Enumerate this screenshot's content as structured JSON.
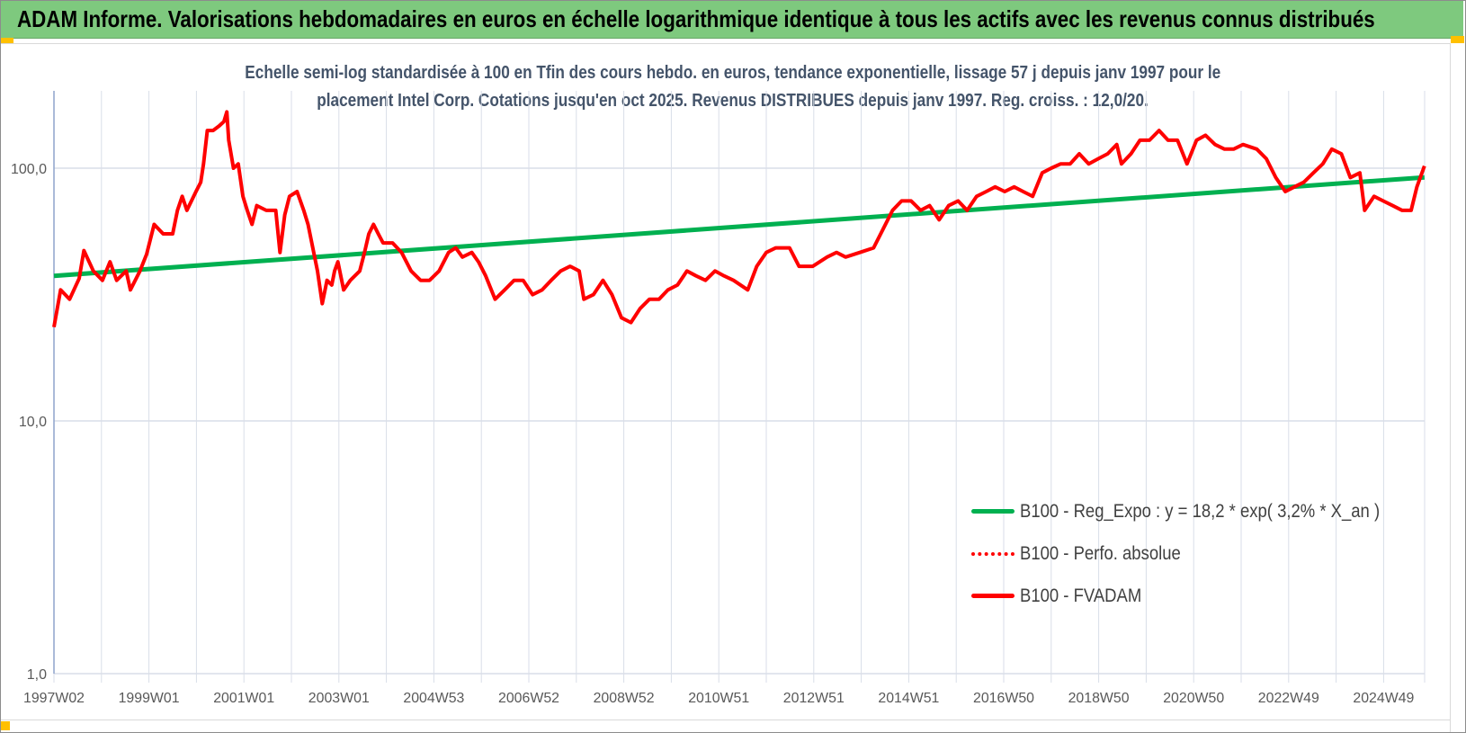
{
  "header": {
    "title": "ADAM Informe. Valorisations hebdomadaires en euros en échelle logarithmique identique à tous les actifs avec les revenus connus distribués"
  },
  "chart_data": {
    "type": "line",
    "subtitle_lines": [
      "Echelle semi-log standardisée à 100 en Tfin des cours hebdo. en euros, tendance exponentielle, lissage 57 j depuis janv 1997 pour le",
      "placement Intel Corp. Cotations jusqu'en oct 2025. Revenus DISTRIBUES depuis janv 1997. Reg. croiss. : 12,0/20."
    ],
    "y_scale": "log",
    "ylim": [
      1,
      200
    ],
    "y_ticks": [
      {
        "value": 1,
        "label": "1,0"
      },
      {
        "value": 10,
        "label": "10,0"
      },
      {
        "value": 100,
        "label": "100,0"
      }
    ],
    "xlim": [
      1997.0,
      2025.86
    ],
    "x_ticks": [
      {
        "year": 1997,
        "label": "1997W02"
      },
      {
        "year": 1999,
        "label": "1999W01"
      },
      {
        "year": 2001,
        "label": "2001W01"
      },
      {
        "year": 2003,
        "label": "2003W01"
      },
      {
        "year": 2005,
        "label": "2004W53"
      },
      {
        "year": 2007,
        "label": "2006W52"
      },
      {
        "year": 2009,
        "label": "2008W52"
      },
      {
        "year": 2011,
        "label": "2010W51"
      },
      {
        "year": 2013,
        "label": "2012W51"
      },
      {
        "year": 2015,
        "label": "2014W51"
      },
      {
        "year": 2017,
        "label": "2016W50"
      },
      {
        "year": 2019,
        "label": "2018W50"
      },
      {
        "year": 2021,
        "label": "2020W50"
      },
      {
        "year": 2023,
        "label": "2022W49"
      },
      {
        "year": 2025,
        "label": "2024W49"
      }
    ],
    "grid": true,
    "legend_position": "bottom-right",
    "series": [
      {
        "name": "B100 - Reg_Expo : y = 18,2 * exp( 3,2% *  X_an )",
        "color": "#00B050",
        "style": "solid",
        "points": [
          [
            1997.0,
            37.5
          ],
          [
            2025.86,
            92.0
          ]
        ]
      },
      {
        "name": "B100 - Perfo. absolue",
        "color": "#FF0000",
        "style": "dotted",
        "points": []
      },
      {
        "name": "B100 - FVADAM",
        "color": "#FF0000",
        "style": "solid",
        "points": [
          [
            1997.0,
            23.5
          ],
          [
            1997.14,
            33.0
          ],
          [
            1997.33,
            30.3
          ],
          [
            1997.53,
            36.6
          ],
          [
            1997.63,
            47.2
          ],
          [
            1997.83,
            39.2
          ],
          [
            1998.02,
            36.0
          ],
          [
            1998.18,
            42.6
          ],
          [
            1998.32,
            36.0
          ],
          [
            1998.52,
            39.2
          ],
          [
            1998.61,
            33.0
          ],
          [
            1998.81,
            39.2
          ],
          [
            1998.95,
            45.6
          ],
          [
            1999.11,
            59.9
          ],
          [
            1999.3,
            55.0
          ],
          [
            1999.5,
            55.0
          ],
          [
            1999.6,
            68.1
          ],
          [
            1999.7,
            77.4
          ],
          [
            1999.8,
            68.1
          ],
          [
            1999.99,
            80.8
          ],
          [
            2000.09,
            88.0
          ],
          [
            2000.15,
            104
          ],
          [
            2000.23,
            141
          ],
          [
            2000.35,
            141
          ],
          [
            2000.48,
            147
          ],
          [
            2000.58,
            153
          ],
          [
            2000.64,
            167
          ],
          [
            2000.68,
            129
          ],
          [
            2000.78,
            100
          ],
          [
            2000.88,
            104
          ],
          [
            2000.98,
            77.4
          ],
          [
            2001.07,
            68.1
          ],
          [
            2001.17,
            59.9
          ],
          [
            2001.27,
            71.1
          ],
          [
            2001.47,
            68.1
          ],
          [
            2001.67,
            68.1
          ],
          [
            2001.76,
            46.4
          ],
          [
            2001.86,
            65.3
          ],
          [
            2001.96,
            77.4
          ],
          [
            2002.12,
            80.8
          ],
          [
            2002.26,
            68.1
          ],
          [
            2002.35,
            59.9
          ],
          [
            2002.55,
            39.2
          ],
          [
            2002.65,
            29.1
          ],
          [
            2002.75,
            36.0
          ],
          [
            2002.85,
            34.5
          ],
          [
            2002.91,
            39.2
          ],
          [
            2002.98,
            42.6
          ],
          [
            2003.1,
            33.0
          ],
          [
            2003.24,
            36.0
          ],
          [
            2003.44,
            39.2
          ],
          [
            2003.54,
            46.4
          ],
          [
            2003.63,
            55.0
          ],
          [
            2003.73,
            59.9
          ],
          [
            2003.83,
            55.0
          ],
          [
            2003.93,
            50.6
          ],
          [
            2004.13,
            50.6
          ],
          [
            2004.32,
            46.4
          ],
          [
            2004.52,
            39.2
          ],
          [
            2004.72,
            36.0
          ],
          [
            2004.91,
            36.0
          ],
          [
            2005.11,
            39.2
          ],
          [
            2005.31,
            46.4
          ],
          [
            2005.46,
            48.4
          ],
          [
            2005.6,
            44.5
          ],
          [
            2005.8,
            46.4
          ],
          [
            2005.94,
            42.6
          ],
          [
            2006.09,
            37.5
          ],
          [
            2006.29,
            30.3
          ],
          [
            2006.49,
            33.0
          ],
          [
            2006.69,
            36.0
          ],
          [
            2006.88,
            36.0
          ],
          [
            2007.08,
            31.6
          ],
          [
            2007.28,
            33.0
          ],
          [
            2007.47,
            36.0
          ],
          [
            2007.67,
            39.2
          ],
          [
            2007.87,
            40.9
          ],
          [
            2008.06,
            39.2
          ],
          [
            2008.16,
            30.3
          ],
          [
            2008.36,
            31.6
          ],
          [
            2008.56,
            36.0
          ],
          [
            2008.75,
            31.6
          ],
          [
            2008.95,
            25.6
          ],
          [
            2009.15,
            24.5
          ],
          [
            2009.34,
            27.8
          ],
          [
            2009.54,
            30.3
          ],
          [
            2009.74,
            30.3
          ],
          [
            2009.93,
            33.0
          ],
          [
            2010.13,
            34.5
          ],
          [
            2010.33,
            39.2
          ],
          [
            2010.52,
            37.5
          ],
          [
            2010.72,
            36.0
          ],
          [
            2010.92,
            39.2
          ],
          [
            2011.11,
            37.5
          ],
          [
            2011.31,
            36.0
          ],
          [
            2011.61,
            33.0
          ],
          [
            2011.8,
            40.9
          ],
          [
            2012.0,
            46.4
          ],
          [
            2012.2,
            48.4
          ],
          [
            2012.49,
            48.4
          ],
          [
            2012.69,
            40.9
          ],
          [
            2012.98,
            40.9
          ],
          [
            2013.28,
            44.5
          ],
          [
            2013.48,
            46.4
          ],
          [
            2013.67,
            44.5
          ],
          [
            2013.97,
            46.4
          ],
          [
            2014.26,
            48.4
          ],
          [
            2014.46,
            57.4
          ],
          [
            2014.66,
            68.1
          ],
          [
            2014.85,
            74.2
          ],
          [
            2015.05,
            74.2
          ],
          [
            2015.25,
            68.1
          ],
          [
            2015.44,
            71.1
          ],
          [
            2015.64,
            62.5
          ],
          [
            2015.84,
            71.1
          ],
          [
            2016.04,
            74.2
          ],
          [
            2016.23,
            68.1
          ],
          [
            2016.43,
            77.4
          ],
          [
            2016.63,
            80.8
          ],
          [
            2016.82,
            84.3
          ],
          [
            2017.02,
            80.8
          ],
          [
            2017.22,
            84.3
          ],
          [
            2017.41,
            80.8
          ],
          [
            2017.61,
            77.4
          ],
          [
            2017.81,
            95.8
          ],
          [
            2018.0,
            100
          ],
          [
            2018.2,
            104
          ],
          [
            2018.4,
            104
          ],
          [
            2018.59,
            114
          ],
          [
            2018.79,
            104
          ],
          [
            2018.99,
            109
          ],
          [
            2019.19,
            114
          ],
          [
            2019.38,
            124
          ],
          [
            2019.48,
            104
          ],
          [
            2019.68,
            114
          ],
          [
            2019.87,
            129
          ],
          [
            2020.07,
            129
          ],
          [
            2020.27,
            141
          ],
          [
            2020.46,
            129
          ],
          [
            2020.66,
            129
          ],
          [
            2020.86,
            104
          ],
          [
            2021.06,
            129
          ],
          [
            2021.25,
            135
          ],
          [
            2021.45,
            124
          ],
          [
            2021.65,
            119
          ],
          [
            2021.84,
            119
          ],
          [
            2022.04,
            124
          ],
          [
            2022.33,
            119
          ],
          [
            2022.53,
            109
          ],
          [
            2022.73,
            91.8
          ],
          [
            2022.93,
            80.8
          ],
          [
            2023.12,
            84.3
          ],
          [
            2023.32,
            88.0
          ],
          [
            2023.52,
            95.8
          ],
          [
            2023.72,
            104
          ],
          [
            2023.91,
            119
          ],
          [
            2024.11,
            114
          ],
          [
            2024.3,
            91.8
          ],
          [
            2024.5,
            95.8
          ],
          [
            2024.6,
            68.1
          ],
          [
            2024.8,
            77.4
          ],
          [
            2024.99,
            74.2
          ],
          [
            2025.19,
            71.1
          ],
          [
            2025.39,
            68.1
          ],
          [
            2025.58,
            68.1
          ],
          [
            2025.7,
            84.3
          ],
          [
            2025.86,
            102
          ]
        ]
      }
    ]
  },
  "colors": {
    "header_bg": "#7EC97E",
    "accent_marker": "#FFC000",
    "subtitle": "#44546A",
    "gridline": "#D9DEE8",
    "axis": "#8EA4CC"
  }
}
